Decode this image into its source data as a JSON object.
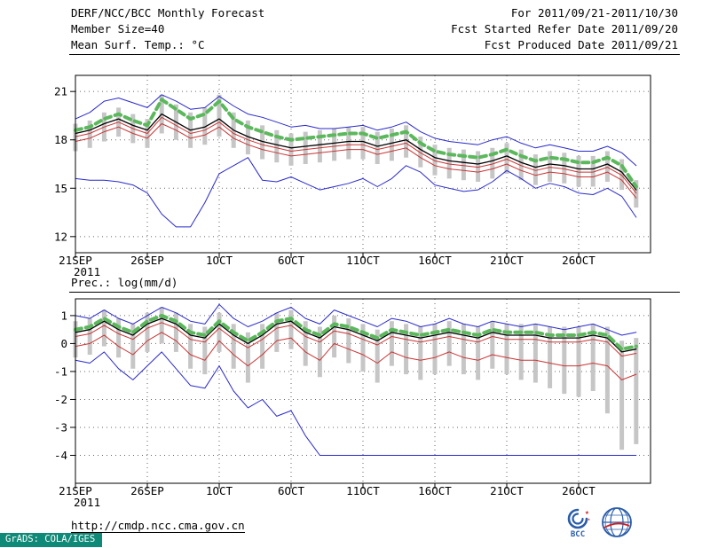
{
  "header": {
    "title": "DERF/NCC/BCC Monthly Forecast",
    "member_size": "Member Size=40",
    "variable_label": "Mean Surf. Temp.: °C",
    "for_range": "For 2011/09/21-2011/10/30",
    "fcst_started": "Fcst Started Refer Date 2011/09/20",
    "fcst_produced": "Fcst Produced Date 2011/09/21"
  },
  "section2_label": "Prec.: log(mm/d)",
  "footer": {
    "url": "http://cmdp.ncc.cma.gov.cn",
    "grads_credit": "GrADS: COLA/IGES",
    "bcc_logo_label": "BCC"
  },
  "colors": {
    "blue_line": "#2929cc",
    "red_line": "#cc3333",
    "black_line": "#000000",
    "green_dashed": "#5cb85c",
    "spread_bar": "#c6c6c6",
    "grads_strip_bg": "#0f8a78",
    "logo_blue": "#2a5caa",
    "logo_red": "#cc2222"
  },
  "chart_data": [
    {
      "type": "line",
      "title": "Mean Surf. Temp.: °C",
      "x_unit": "day",
      "xlim": [
        0,
        40
      ],
      "x_ticks": [
        {
          "day": 0,
          "label": "21SEP",
          "sublabel": "2011"
        },
        {
          "day": 5,
          "label": "26SEP"
        },
        {
          "day": 10,
          "label": "1OCT"
        },
        {
          "day": 15,
          "label": "6OCT"
        },
        {
          "day": 20,
          "label": "11OCT"
        },
        {
          "day": 25,
          "label": "16OCT"
        },
        {
          "day": 30,
          "label": "21OCT"
        },
        {
          "day": 35,
          "label": "26OCT"
        }
      ],
      "ylim": [
        11,
        22
      ],
      "y_ticks": [
        12,
        15,
        18,
        21
      ],
      "grid": "dotted",
      "ensemble_bars": {
        "color": "#c6c6c6",
        "top": [
          19.0,
          19.2,
          19.7,
          20.0,
          19.6,
          19.3,
          20.8,
          20.2,
          19.7,
          20.0,
          20.8,
          19.7,
          19.2,
          18.9,
          18.6,
          18.4,
          18.5,
          18.6,
          18.7,
          18.8,
          18.8,
          18.5,
          18.7,
          18.9,
          18.2,
          17.7,
          17.5,
          17.4,
          17.3,
          17.5,
          17.8,
          17.4,
          17.1,
          17.3,
          17.2,
          17.0,
          17.0,
          17.3,
          16.8,
          15.5
        ],
        "bottom": [
          17.3,
          17.5,
          17.9,
          18.2,
          17.8,
          17.5,
          18.4,
          18.0,
          17.5,
          17.7,
          18.2,
          17.5,
          17.1,
          16.8,
          16.6,
          16.4,
          16.5,
          16.6,
          16.7,
          16.8,
          16.8,
          16.5,
          16.7,
          16.9,
          16.3,
          15.8,
          15.6,
          15.5,
          15.4,
          15.6,
          15.9,
          15.5,
          15.2,
          15.4,
          15.3,
          15.1,
          15.1,
          15.4,
          14.9,
          13.8
        ]
      },
      "series": [
        {
          "name": "blue-upper-line",
          "color": "#2929cc",
          "width": 1,
          "values": [
            19.3,
            19.7,
            20.4,
            20.6,
            20.3,
            20.0,
            20.8,
            20.4,
            19.9,
            20.0,
            20.7,
            20.1,
            19.6,
            19.4,
            19.1,
            18.8,
            18.9,
            18.7,
            18.7,
            18.8,
            18.9,
            18.6,
            18.8,
            19.1,
            18.5,
            18.1,
            17.9,
            17.8,
            17.7,
            18.0,
            18.2,
            17.8,
            17.5,
            17.7,
            17.5,
            17.3,
            17.3,
            17.6,
            17.2,
            16.4
          ]
        },
        {
          "name": "blue-lower-line",
          "color": "#2929cc",
          "width": 1,
          "values": [
            15.6,
            15.5,
            15.5,
            15.4,
            15.2,
            14.7,
            13.4,
            12.6,
            12.6,
            14.1,
            15.9,
            16.4,
            16.9,
            15.5,
            15.4,
            15.7,
            15.3,
            14.9,
            15.1,
            15.3,
            15.6,
            15.1,
            15.6,
            16.4,
            16.0,
            15.2,
            15.0,
            14.8,
            14.9,
            15.4,
            16.1,
            15.6,
            15.0,
            15.3,
            15.1,
            14.7,
            14.6,
            15.0,
            14.5,
            13.2
          ]
        },
        {
          "name": "red-upper-line",
          "color": "#cc3333",
          "width": 1,
          "values": [
            18.2,
            18.4,
            18.8,
            19.1,
            18.7,
            18.4,
            19.4,
            18.9,
            18.4,
            18.6,
            19.1,
            18.4,
            18.0,
            17.7,
            17.5,
            17.3,
            17.4,
            17.5,
            17.6,
            17.7,
            17.7,
            17.4,
            17.6,
            17.8,
            17.2,
            16.7,
            16.5,
            16.4,
            16.3,
            16.5,
            16.8,
            16.4,
            16.1,
            16.3,
            16.2,
            16.0,
            16.0,
            16.3,
            15.8,
            14.7
          ]
        },
        {
          "name": "red-lower-line",
          "color": "#cc3333",
          "width": 1,
          "values": [
            17.9,
            18.1,
            18.5,
            18.8,
            18.4,
            18.1,
            19.0,
            18.6,
            18.1,
            18.3,
            18.8,
            18.1,
            17.7,
            17.4,
            17.2,
            17.0,
            17.1,
            17.2,
            17.3,
            17.4,
            17.4,
            17.1,
            17.3,
            17.5,
            16.9,
            16.4,
            16.2,
            16.1,
            16.0,
            16.2,
            16.5,
            16.1,
            15.8,
            16.0,
            15.9,
            15.7,
            15.7,
            16.0,
            15.5,
            14.4
          ]
        },
        {
          "name": "black-line",
          "color": "#000000",
          "width": 1.3,
          "values": [
            18.4,
            18.6,
            19.0,
            19.3,
            18.9,
            18.6,
            19.6,
            19.1,
            18.6,
            18.8,
            19.3,
            18.6,
            18.2,
            17.9,
            17.7,
            17.5,
            17.6,
            17.7,
            17.8,
            17.9,
            17.9,
            17.6,
            17.8,
            18.0,
            17.4,
            16.9,
            16.7,
            16.6,
            16.5,
            16.7,
            17.0,
            16.6,
            16.3,
            16.5,
            16.4,
            16.2,
            16.2,
            16.5,
            16.0,
            14.9
          ]
        },
        {
          "name": "green-dashed-line",
          "color": "#5cb85c",
          "width": 4,
          "dash": "7,5",
          "values": [
            18.6,
            18.8,
            19.3,
            19.6,
            19.2,
            18.9,
            20.5,
            19.9,
            19.3,
            19.6,
            20.4,
            19.3,
            18.8,
            18.5,
            18.2,
            18.0,
            18.1,
            18.2,
            18.3,
            18.4,
            18.4,
            18.1,
            18.3,
            18.5,
            17.8,
            17.3,
            17.1,
            17.0,
            16.9,
            17.1,
            17.4,
            17.0,
            16.7,
            16.9,
            16.8,
            16.6,
            16.6,
            16.9,
            16.4,
            15.1
          ]
        }
      ]
    },
    {
      "type": "line",
      "title": "Prec.: log(mm/d)",
      "x_unit": "day",
      "xlim": [
        0,
        40
      ],
      "x_ticks": [
        {
          "day": 0,
          "label": "21SEP",
          "sublabel": "2011"
        },
        {
          "day": 5,
          "label": "26SEP"
        },
        {
          "day": 10,
          "label": "1OCT"
        },
        {
          "day": 15,
          "label": "6OCT"
        },
        {
          "day": 20,
          "label": "11OCT"
        },
        {
          "day": 25,
          "label": "16OCT"
        },
        {
          "day": 30,
          "label": "21OCT"
        },
        {
          "day": 35,
          "label": "26OCT"
        }
      ],
      "ylim": [
        -5,
        1.6
      ],
      "y_ticks": [
        -4,
        -3,
        -2,
        -1,
        0,
        1
      ],
      "grid": "dotted",
      "ensemble_bars": {
        "color": "#c6c6c6",
        "top": [
          0.8,
          0.9,
          1.2,
          0.9,
          0.7,
          1.1,
          1.3,
          1.1,
          0.7,
          0.6,
          1.1,
          0.7,
          0.4,
          0.7,
          1.1,
          1.2,
          0.8,
          0.6,
          1.0,
          0.9,
          0.7,
          0.5,
          0.8,
          0.7,
          0.6,
          0.7,
          0.8,
          0.7,
          0.6,
          0.8,
          0.7,
          0.7,
          0.7,
          0.6,
          0.6,
          0.6,
          0.7,
          0.6,
          0.1,
          0.2
        ],
        "bottom": [
          -0.5,
          -0.4,
          -0.1,
          -0.5,
          -0.9,
          -0.3,
          0.0,
          -0.3,
          -0.9,
          -1.1,
          -0.3,
          -0.9,
          -1.4,
          -0.9,
          -0.3,
          -0.2,
          -0.8,
          -1.2,
          -0.5,
          -0.7,
          -1.0,
          -1.4,
          -0.8,
          -1.1,
          -1.3,
          -1.1,
          -0.8,
          -1.1,
          -1.3,
          -0.9,
          -1.1,
          -1.3,
          -1.4,
          -1.6,
          -1.8,
          -1.9,
          -1.7,
          -2.5,
          -3.8,
          -3.6
        ]
      },
      "series": [
        {
          "name": "blue-upper-line",
          "color": "#2929cc",
          "width": 1,
          "values": [
            1.0,
            0.9,
            1.2,
            0.9,
            0.7,
            1.0,
            1.3,
            1.1,
            0.8,
            0.7,
            1.4,
            0.9,
            0.6,
            0.8,
            1.1,
            1.3,
            0.9,
            0.7,
            1.2,
            1.0,
            0.8,
            0.6,
            0.9,
            0.8,
            0.6,
            0.7,
            0.9,
            0.7,
            0.6,
            0.8,
            0.7,
            0.6,
            0.7,
            0.6,
            0.5,
            0.6,
            0.7,
            0.5,
            0.3,
            0.4
          ]
        },
        {
          "name": "blue-lower-line",
          "color": "#2929cc",
          "width": 1,
          "values": [
            -0.6,
            -0.7,
            -0.3,
            -0.9,
            -1.3,
            -0.8,
            -0.3,
            -0.9,
            -1.5,
            -1.6,
            -0.8,
            -1.7,
            -2.3,
            -2.0,
            -2.6,
            -2.4,
            -3.3,
            -4.0,
            -4.0,
            -4.0,
            -4.0,
            -4.0,
            -4.0,
            -4.0,
            -4.0,
            -4.0,
            -4.0,
            -4.0,
            -4.0,
            -4.0,
            -4.0,
            -4.0,
            -4.0,
            -4.0,
            -4.0,
            -4.0,
            -4.0,
            -4.0,
            -4.0,
            -4.0
          ]
        },
        {
          "name": "red-upper-line",
          "color": "#cc3333",
          "width": 1,
          "values": [
            0.25,
            0.35,
            0.65,
            0.35,
            0.15,
            0.55,
            0.75,
            0.55,
            0.15,
            0.05,
            0.55,
            0.15,
            -0.15,
            0.15,
            0.55,
            0.65,
            0.25,
            0.05,
            0.45,
            0.35,
            0.15,
            -0.05,
            0.25,
            0.15,
            0.05,
            0.15,
            0.25,
            0.15,
            0.05,
            0.25,
            0.15,
            0.15,
            0.15,
            0.05,
            0.05,
            0.05,
            0.15,
            0.05,
            -0.45,
            -0.35
          ]
        },
        {
          "name": "red-lower-line",
          "color": "#cc3333",
          "width": 1,
          "values": [
            -0.1,
            0.0,
            0.3,
            -0.1,
            -0.4,
            0.1,
            0.4,
            0.1,
            -0.4,
            -0.6,
            0.1,
            -0.4,
            -0.8,
            -0.4,
            0.1,
            0.2,
            -0.3,
            -0.6,
            0.0,
            -0.2,
            -0.4,
            -0.7,
            -0.3,
            -0.5,
            -0.6,
            -0.5,
            -0.3,
            -0.5,
            -0.6,
            -0.4,
            -0.5,
            -0.6,
            -0.6,
            -0.7,
            -0.8,
            -0.8,
            -0.7,
            -0.8,
            -1.3,
            -1.1
          ]
        },
        {
          "name": "black-line",
          "color": "#000000",
          "width": 1.3,
          "values": [
            0.4,
            0.5,
            0.8,
            0.5,
            0.3,
            0.7,
            0.9,
            0.7,
            0.3,
            0.2,
            0.7,
            0.3,
            0.0,
            0.3,
            0.7,
            0.8,
            0.4,
            0.2,
            0.6,
            0.5,
            0.3,
            0.1,
            0.4,
            0.3,
            0.2,
            0.3,
            0.4,
            0.3,
            0.2,
            0.4,
            0.3,
            0.3,
            0.3,
            0.2,
            0.2,
            0.2,
            0.3,
            0.2,
            -0.3,
            -0.2
          ]
        },
        {
          "name": "green-dashed-line",
          "color": "#5cb85c",
          "width": 4,
          "dash": "7,5",
          "values": [
            0.5,
            0.6,
            0.9,
            0.6,
            0.4,
            0.8,
            1.0,
            0.8,
            0.4,
            0.3,
            0.8,
            0.4,
            0.1,
            0.4,
            0.8,
            0.9,
            0.5,
            0.3,
            0.7,
            0.6,
            0.4,
            0.2,
            0.5,
            0.4,
            0.3,
            0.4,
            0.5,
            0.4,
            0.3,
            0.5,
            0.4,
            0.4,
            0.4,
            0.3,
            0.3,
            0.3,
            0.4,
            0.3,
            -0.2,
            -0.1
          ]
        }
      ]
    }
  ]
}
